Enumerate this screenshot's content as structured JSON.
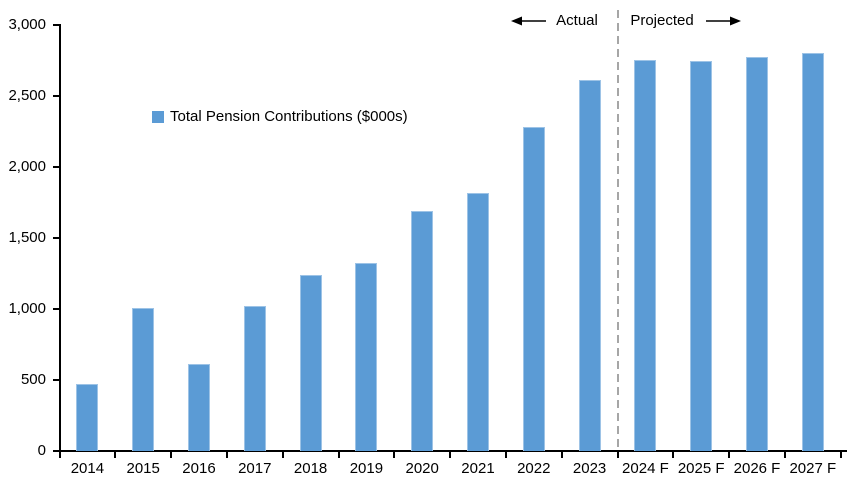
{
  "chart_data": {
    "type": "bar",
    "title": "",
    "legend_label": "Total Pension Contributions ($000s)",
    "categories": [
      "2014",
      "2015",
      "2016",
      "2017",
      "2018",
      "2019",
      "2020",
      "2021",
      "2022",
      "2023",
      "2024 F",
      "2025 F",
      "2026 F",
      "2027 F"
    ],
    "values": [
      475,
      1010,
      615,
      1025,
      1240,
      1325,
      1690,
      1820,
      2285,
      2615,
      2755,
      2745,
      2775,
      2800
    ],
    "xlabel": "",
    "ylabel": "",
    "ylim": [
      0,
      3000
    ],
    "yticks": [
      0,
      500,
      1000,
      1500,
      2000,
      2500,
      3000
    ],
    "ytick_labels": [
      "0",
      "500",
      "1,000",
      "1,500",
      "2,000",
      "2,500",
      "3,000"
    ],
    "grid": false,
    "legend_position": "inside-upper-left",
    "annotations": {
      "actual_label": "Actual",
      "projected_label": "Projected",
      "divider_after_index": 10
    },
    "colors": {
      "bar": "#5B9BD5",
      "bar_edge": "#9DC3E6",
      "axis": "#000000",
      "divider": "#A6A6A6",
      "text": "#000000",
      "background": "#FFFFFF"
    }
  }
}
